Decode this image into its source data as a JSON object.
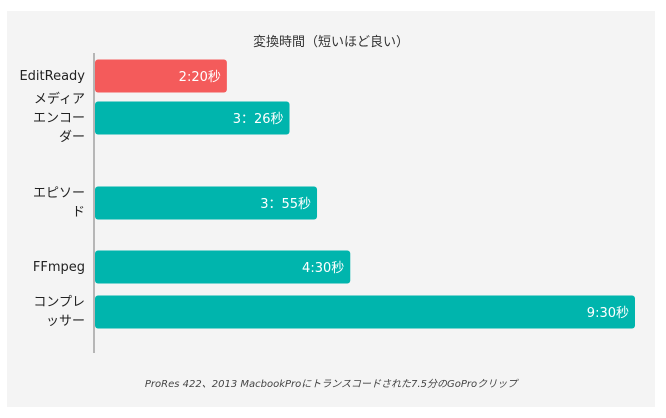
{
  "chart_data": {
    "type": "bar",
    "orientation": "horizontal",
    "title": "変換時間（短いほど良い）",
    "caption": "ProRes 422、2013 MacbookProにトランスコードされた7.5分のGoProクリップ",
    "categories": [
      "EditReady",
      "メディア\nエンコー\nダー",
      "エピソー\nド",
      "FFmpeg",
      "コンプレ\nッサー"
    ],
    "values_seconds": [
      140,
      206,
      235,
      270,
      570
    ],
    "data_labels": [
      "2:20秒",
      "3：26秒",
      "3：55秒",
      "4:30秒",
      "9:30秒"
    ],
    "xlim": [
      0,
      570
    ],
    "grid": false,
    "legend": "none",
    "colors": [
      "#f45b5b",
      "#00b5ad",
      "#00b5ad",
      "#00b5ad",
      "#00b5ad"
    ]
  }
}
